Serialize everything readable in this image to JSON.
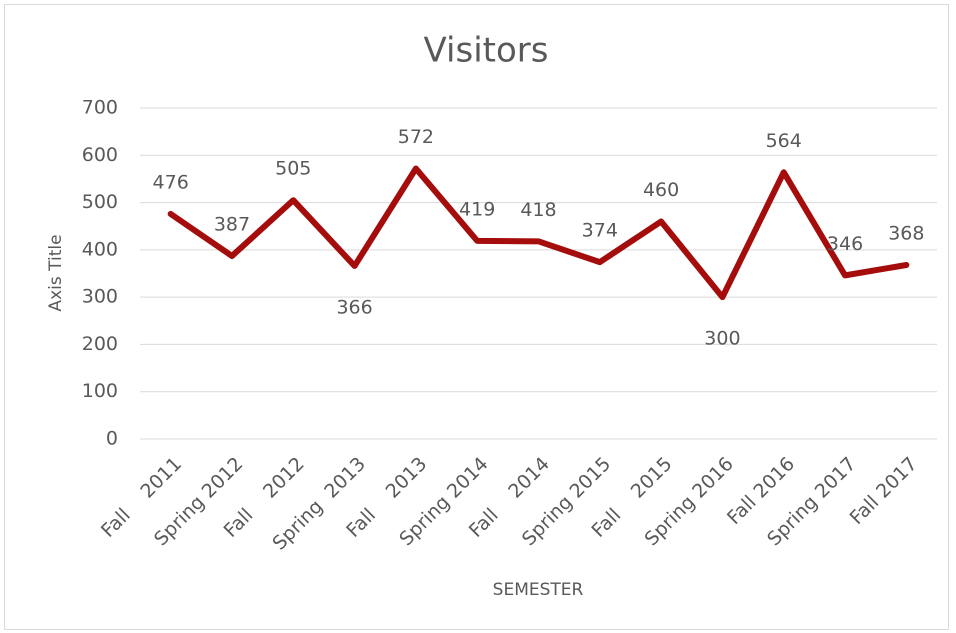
{
  "chart_data": {
    "type": "line",
    "title": "Visitors",
    "x_label": "SEMESTER",
    "y_label": "Axis Title",
    "categories": [
      "Fall    2011",
      "Spring 2012",
      "Fall    2012",
      "Spring  2013",
      "Fall    2013",
      "Spring 2014",
      "Fall    2014",
      "Spring 2015",
      "Fall    2015",
      "Spring 2016",
      "Fall 2016",
      "Spring 2017",
      "Fall 2017"
    ],
    "series": [
      {
        "name": "Visitors",
        "color": "#a50d0d",
        "values": [
          476,
          387,
          505,
          366,
          572,
          419,
          418,
          374,
          460,
          300,
          564,
          346,
          368
        ]
      }
    ],
    "ylim": [
      0,
      700
    ],
    "yticks": [
      0,
      100,
      200,
      300,
      400,
      500,
      600,
      700
    ],
    "grid": true
  }
}
